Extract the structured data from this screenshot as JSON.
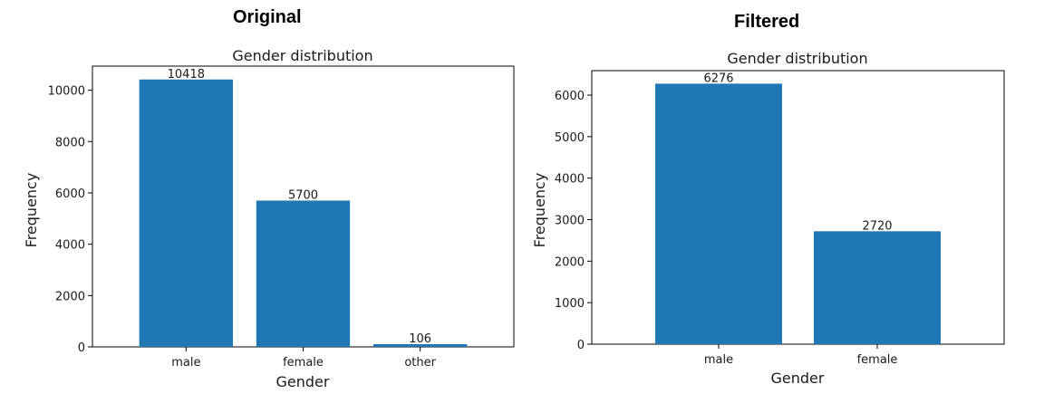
{
  "headings": {
    "left": "Original",
    "right": "Filtered"
  },
  "chart_data": [
    {
      "type": "bar",
      "title": "Gender distribution",
      "xlabel": "Gender",
      "ylabel": "Frequency",
      "categories": [
        "male",
        "female",
        "other"
      ],
      "values": [
        10418,
        5700,
        106
      ],
      "value_labels": [
        "10418",
        "5700",
        "106"
      ],
      "yticks": [
        0,
        2000,
        4000,
        6000,
        8000,
        10000
      ],
      "ylim": [
        0,
        10939
      ],
      "bar_color": "#1f77b4",
      "grid": false
    },
    {
      "type": "bar",
      "title": "Gender distribution",
      "xlabel": "Gender",
      "ylabel": "Frequency",
      "categories": [
        "male",
        "female"
      ],
      "values": [
        6276,
        2720
      ],
      "value_labels": [
        "6276",
        "2720"
      ],
      "yticks": [
        0,
        1000,
        2000,
        3000,
        4000,
        5000,
        6000
      ],
      "ylim": [
        0,
        6590
      ],
      "bar_color": "#1f77b4",
      "grid": false
    }
  ]
}
